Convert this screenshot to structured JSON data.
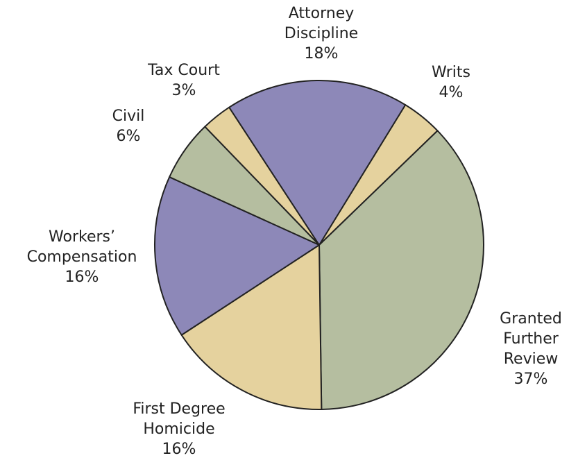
{
  "chart_data": {
    "type": "pie",
    "categories": [
      "Writs",
      "Granted Further Review",
      "First Degree Homicide",
      "Workers’ Compensation",
      "Civil",
      "Tax Court",
      "Attorney Discipline"
    ],
    "values": [
      4,
      37,
      16,
      16,
      6,
      3,
      18
    ],
    "value_labels": [
      "4%",
      "37%",
      "16%",
      "16%",
      "6%",
      "3%",
      "18%"
    ],
    "colors": [
      "#e5d29e",
      "#b5bea0",
      "#e5d29e",
      "#8d88b8",
      "#b5bea0",
      "#e5d29e",
      "#8d88b8"
    ]
  }
}
